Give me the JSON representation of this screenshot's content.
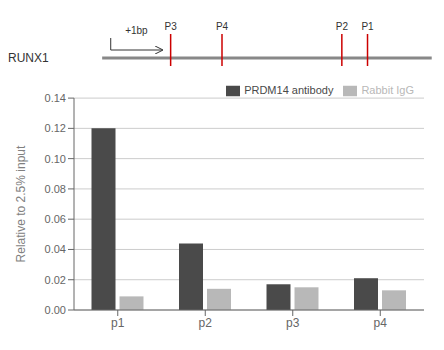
{
  "chart_data": {
    "type": "bar",
    "categories": [
      "p1",
      "p2",
      "p3",
      "p4"
    ],
    "series": [
      {
        "name": "PRDM14 antibody",
        "color": "#4a4a4a",
        "values": [
          0.12,
          0.044,
          0.017,
          0.021
        ]
      },
      {
        "name": "Rabbit IgG",
        "color": "#b8b8b8",
        "values": [
          0.009,
          0.014,
          0.015,
          0.013
        ]
      }
    ],
    "ylabel": "Relative to 2.5% input",
    "ylim": [
      0,
      0.14
    ],
    "yticks": [
      {
        "value": 0,
        "label": "0.00"
      },
      0.02,
      0.04,
      0.06,
      0.08,
      {
        "value": 0.1,
        "label": "0.10"
      },
      0.12,
      0.14
    ],
    "grid": true,
    "legend": "upper right",
    "annotations": [
      "RUNX1",
      "+1bp",
      "P3",
      "P4",
      "P2",
      "P1"
    ]
  }
}
